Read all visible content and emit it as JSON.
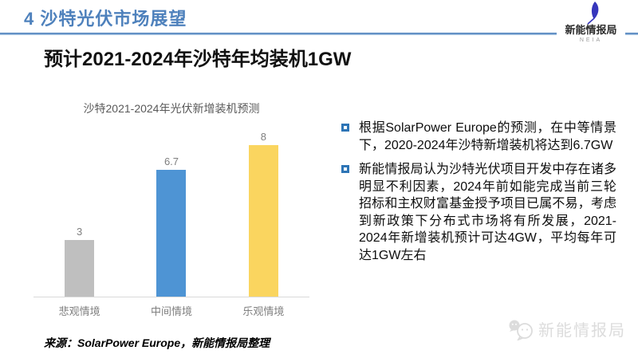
{
  "header": {
    "section_number": "4",
    "title": "沙特光伏市场展望",
    "accent_color": "#4F81BD"
  },
  "logo": {
    "name": "新能情报局",
    "subtitle": "NEIA",
    "feather_color": "#3636BC"
  },
  "slide": {
    "title": "预计2021-2024年沙特年均装机1GW"
  },
  "chart_data": {
    "type": "bar",
    "title": "沙特2021-2024年光伏新增装机预测",
    "categories": [
      "悲观情境",
      "中间情境",
      "乐观情境"
    ],
    "values": [
      3,
      6.7,
      8
    ],
    "value_labels": [
      "3",
      "6.7",
      "8"
    ],
    "bar_colors": [
      "#BFBFBF",
      "#4E94D4",
      "#FAD55F"
    ],
    "unit": "GW",
    "ylim": [
      0,
      8
    ],
    "grid": false,
    "legend": false,
    "axis_color": "#D9D9D9",
    "label_color": "#7F7F7F"
  },
  "bullets": [
    {
      "text": "根据SolarPower Europe的预测，在中等情景下，2020-2024年沙特新增装机将达到6.7GW"
    },
    {
      "text": "新能情报局认为沙特光伏项目开发中存在诸多明显不利因素，2024年前如能完成当前三轮招标和主权财富基金授予项目已属不易，考虑到新政策下分布式市场将有所发展，2021-2024年新增装机预计可达4GW，平均每年可达1GW左右"
    }
  ],
  "source": "来源：SolarPower Europe，新能情报局整理",
  "watermark": "新能情报局"
}
